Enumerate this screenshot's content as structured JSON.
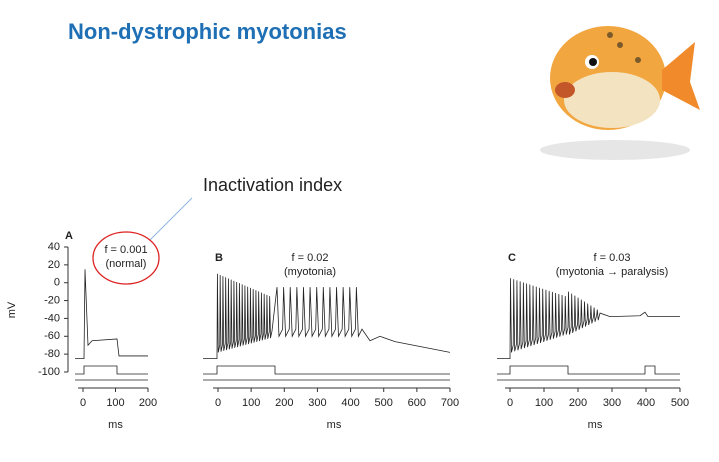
{
  "title": "Non-dystrophic myotonias",
  "annotation": "Inactivation index",
  "y_axis": {
    "label": "mV",
    "ticks": [
      40,
      20,
      0,
      -20,
      -40,
      -60,
      -80,
      -100
    ]
  },
  "panels": [
    {
      "label": "A",
      "f": "f = 0.001",
      "note": "(normal)",
      "xlabel": "ms",
      "xticks": [
        0,
        100,
        200
      ]
    },
    {
      "label": "B",
      "f": "f = 0.02",
      "note": "(myotonia)",
      "xlabel": "ms",
      "xticks": [
        0,
        100,
        200,
        300,
        400,
        500,
        600,
        700
      ]
    },
    {
      "label": "C",
      "f": "f = 0.03",
      "note": "(myotonia → paralysis)",
      "xlabel": "ms",
      "xticks": [
        0,
        100,
        200,
        300,
        400,
        500
      ]
    }
  ]
}
